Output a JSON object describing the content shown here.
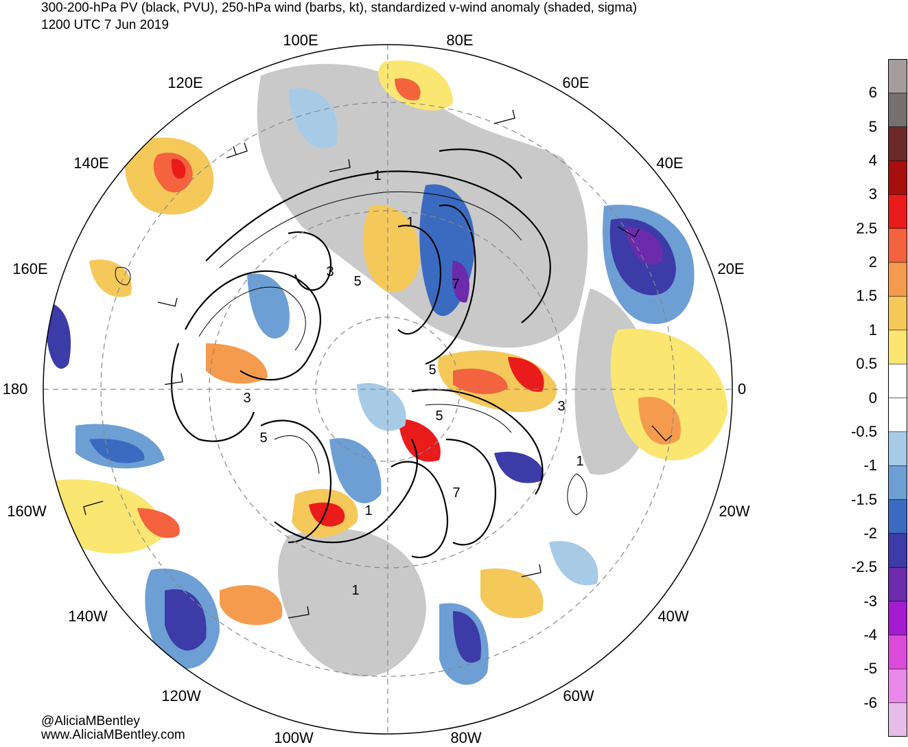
{
  "header": {
    "title": "300-200-hPa PV (black, PVU), 250-hPa wind (barbs, kt), standardized v-wind anomaly (shaded, sigma)",
    "valid_time": "1200 UTC 7 Jun 2019"
  },
  "map": {
    "projection": "north polar stereographic",
    "longitude_labels": [
      "100E",
      "80E",
      "120E",
      "60E",
      "140E",
      "40E",
      "160E",
      "20E",
      "180",
      "0",
      "160W",
      "20W",
      "140W",
      "40W",
      "120W",
      "60W",
      "100W",
      "80W"
    ],
    "pv_contour_labels": [
      "1",
      "3",
      "5",
      "5",
      "3",
      "5",
      "3",
      "5",
      "7",
      "1",
      "1",
      "1",
      "7",
      "1"
    ]
  },
  "colorbar": {
    "labels": [
      "6",
      "5",
      "4",
      "3",
      "2.5",
      "2",
      "1.5",
      "1",
      "0.5",
      "0",
      "-0.5",
      "-1",
      "-1.5",
      "-2",
      "-2.5",
      "-3",
      "-4",
      "-5",
      "-6"
    ],
    "colors": [
      "#a59d9d",
      "#767170",
      "#6e2929",
      "#a70e0e",
      "#ea1b1b",
      "#f4623e",
      "#f59b4e",
      "#f5c85a",
      "#fbe671",
      "#ffffff",
      "#ffffff",
      "#a7cbe7",
      "#6d9fd5",
      "#3b6bc0",
      "#3c3ba8",
      "#6c2aad",
      "#a51bcf",
      "#db4bd9",
      "#ea88e9",
      "#e6bde8"
    ]
  },
  "credits": {
    "handle": "@AliciaMBentley",
    "url": "www.AliciaMBentley.com"
  }
}
